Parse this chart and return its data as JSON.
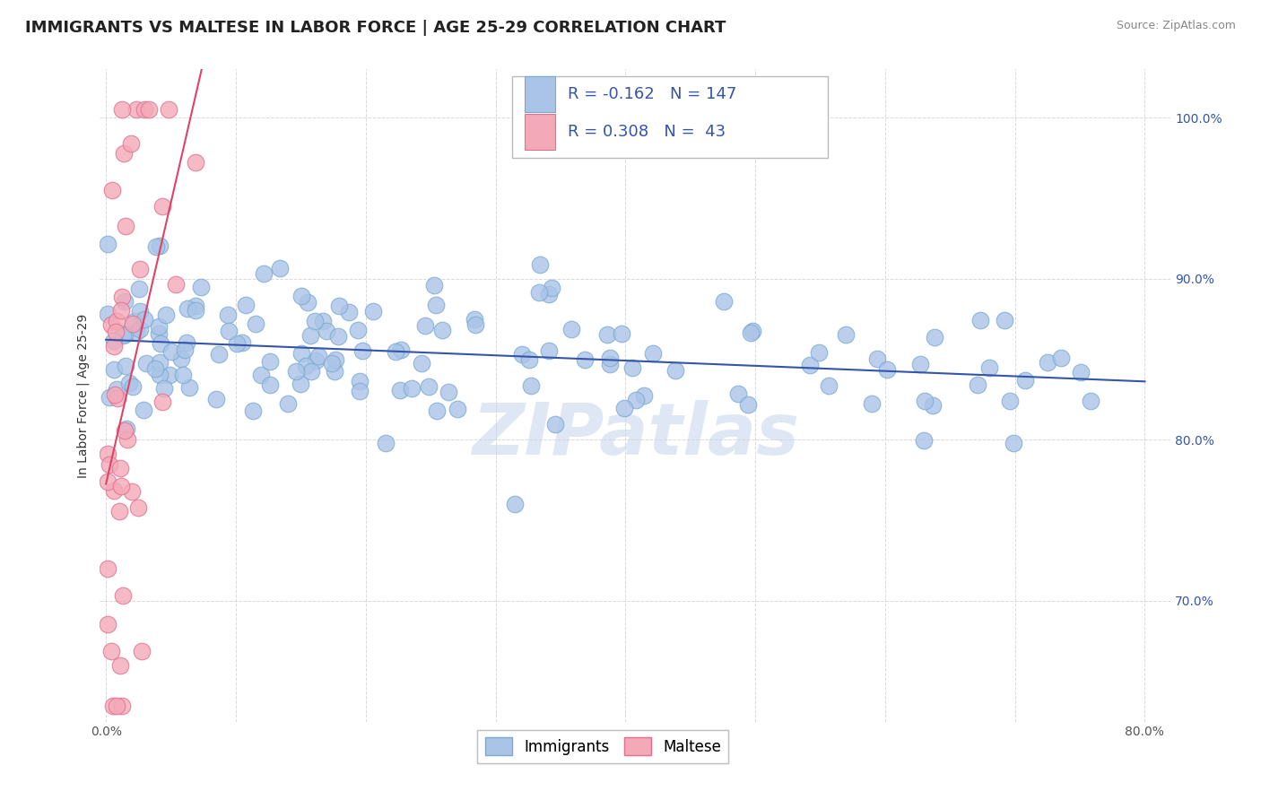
{
  "title": "IMMIGRANTS VS MALTESE IN LABOR FORCE | AGE 25-29 CORRELATION CHART",
  "source_text": "Source: ZipAtlas.com",
  "ylabel": "In Labor Force | Age 25-29",
  "xlim": [
    -0.005,
    0.82
  ],
  "ylim": [
    0.625,
    1.03
  ],
  "xticks": [
    0.0,
    0.1,
    0.2,
    0.3,
    0.4,
    0.5,
    0.6,
    0.7,
    0.8
  ],
  "xtick_labels": [
    "0.0%",
    "",
    "",
    "",
    "",
    "",
    "",
    "",
    "80.0%"
  ],
  "ytick_labels": [
    "70.0%",
    "80.0%",
    "90.0%",
    "100.0%"
  ],
  "yticks": [
    0.7,
    0.8,
    0.9,
    1.0
  ],
  "background_color": "#ffffff",
  "grid_color": "#d0d0d0",
  "immigrants_color": "#aac4e8",
  "maltese_color": "#f4a9b8",
  "immigrants_edge_color": "#7aaad0",
  "maltese_edge_color": "#e07090",
  "trend_immigrants_color": "#3355aa",
  "trend_maltese_color": "#dd4466",
  "legend_text_color": "#3355aa",
  "immigrants_R": -0.162,
  "immigrants_N": 147,
  "maltese_R": 0.308,
  "maltese_N": 43,
  "watermark": "ZIPatlas",
  "watermark_color": "#c8d8ec",
  "title_fontsize": 13,
  "axis_label_fontsize": 10,
  "tick_fontsize": 10,
  "legend_fontsize": 13,
  "source_fontsize": 9,
  "immigrants_seed": 42,
  "maltese_seed": 7
}
